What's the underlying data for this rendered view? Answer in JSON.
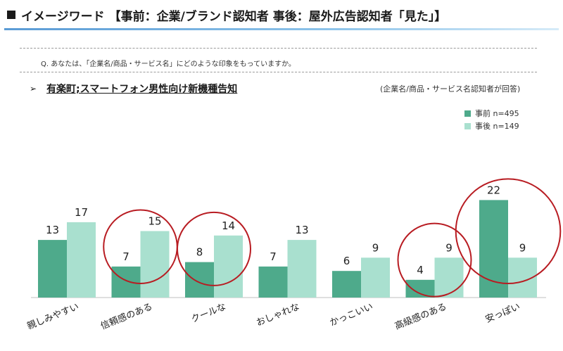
{
  "header": {
    "title": "イメージワード 【事前：企業/ブランド認知者 事後：屋外広告認知者「見た」】"
  },
  "question": "Q. あなたは、「企業名/商品・サービス名」にどのような印象をもっていますか。",
  "subtitle": "有楽町;スマートフォン男性向け新機種告知",
  "note": "(企業名/商品・サービス名認知者が回答)",
  "colors": {
    "pre": "#4eaa8b",
    "post": "#a9e0cf",
    "circle": "#b81c22"
  },
  "chart_data": {
    "type": "bar",
    "categories": [
      "親しみやすい",
      "信頼感のある",
      "クールな",
      "おしゃれな",
      "かっこいい",
      "高級感のある",
      "安っぽい"
    ],
    "series": [
      {
        "name": "事前 n=495",
        "values": [
          13,
          7,
          8,
          7,
          6,
          4,
          22
        ]
      },
      {
        "name": "事後 n=149",
        "values": [
          17,
          15,
          14,
          13,
          9,
          9,
          9
        ]
      }
    ],
    "highlighted_categories": [
      "信頼感のある",
      "クールな",
      "高級感のある",
      "安っぽい"
    ],
    "ylim": [
      0,
      25
    ],
    "grid": false,
    "data_labels": true,
    "legend_position": "top-right"
  }
}
